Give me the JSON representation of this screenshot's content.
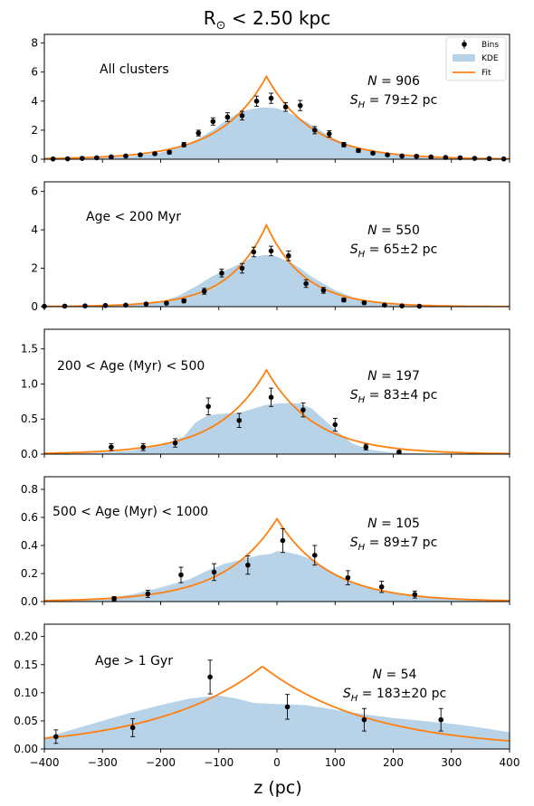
{
  "figure": {
    "title_main": "R",
    "title_sub": "⊙",
    "title_rest": " < 2.50 kpc",
    "xlabel": "z (pc)"
  },
  "colors": {
    "kde": "#b8d3e8",
    "fit": "#ff7f0e",
    "bins": "#000000"
  },
  "legend": {
    "location": "top-right",
    "bins": "Bins",
    "kde": "KDE",
    "fit": "Fit"
  },
  "chart_data": [
    {
      "type": "line",
      "label": "All clusters",
      "n_text": "906",
      "sh_text": "79±2 pc",
      "xlim": [
        -400,
        400
      ],
      "ylim": [
        0,
        8.6
      ],
      "yticks": [
        0,
        2,
        4,
        6,
        8
      ],
      "ytick_labels": [
        "0",
        "2",
        "4",
        "6",
        "8"
      ],
      "fit": {
        "peak": 5.7,
        "center": -18,
        "scale": 79
      },
      "kde": {
        "x": [
          -400,
          -350,
          -300,
          -250,
          -200,
          -170,
          -140,
          -110,
          -90,
          -70,
          -50,
          -30,
          -15,
          0,
          15,
          30,
          50,
          70,
          90,
          110,
          130,
          160,
          200,
          250,
          300,
          350,
          400
        ],
        "y": [
          0.02,
          0.05,
          0.1,
          0.2,
          0.45,
          0.8,
          1.3,
          2.0,
          2.6,
          3.1,
          3.4,
          3.55,
          3.55,
          3.5,
          3.3,
          3.0,
          2.6,
          2.1,
          1.6,
          1.2,
          0.9,
          0.55,
          0.3,
          0.12,
          0.06,
          0.03,
          0.02
        ]
      },
      "bins": {
        "x": [
          -385,
          -360,
          -335,
          -310,
          -285,
          -260,
          -235,
          -210,
          -185,
          -160,
          -135,
          -110,
          -85,
          -60,
          -35,
          -10,
          15,
          40,
          65,
          90,
          115,
          140,
          165,
          190,
          215,
          240,
          265,
          290,
          315,
          340,
          365,
          390
        ],
        "y": [
          0.02,
          0.03,
          0.06,
          0.1,
          0.16,
          0.22,
          0.3,
          0.38,
          0.48,
          1.0,
          1.8,
          2.6,
          2.9,
          3.0,
          4.0,
          4.2,
          3.6,
          3.7,
          2.0,
          1.75,
          1.0,
          0.6,
          0.42,
          0.3,
          0.22,
          0.2,
          0.15,
          0.12,
          0.1,
          0.06,
          0.04,
          0.02
        ],
        "err": [
          0.02,
          0.03,
          0.04,
          0.05,
          0.06,
          0.07,
          0.08,
          0.1,
          0.12,
          0.15,
          0.2,
          0.25,
          0.3,
          0.3,
          0.35,
          0.35,
          0.3,
          0.35,
          0.25,
          0.22,
          0.15,
          0.12,
          0.1,
          0.08,
          0.07,
          0.06,
          0.05,
          0.05,
          0.04,
          0.04,
          0.03,
          0.02
        ]
      }
    },
    {
      "type": "line",
      "label": "Age < 200 Myr",
      "n_text": "550",
      "sh_text": "65±2 pc",
      "xlim": [
        -400,
        400
      ],
      "ylim": [
        0,
        6.5
      ],
      "yticks": [
        0,
        2,
        4,
        6
      ],
      "ytick_labels": [
        "0",
        "2",
        "4",
        "6"
      ],
      "fit": {
        "peak": 4.25,
        "center": -18,
        "scale": 65
      },
      "kde": {
        "x": [
          -400,
          -300,
          -250,
          -200,
          -170,
          -140,
          -110,
          -80,
          -60,
          -40,
          -20,
          0,
          20,
          40,
          60,
          80,
          100,
          130,
          160,
          200,
          250,
          300,
          400
        ],
        "y": [
          0.01,
          0.04,
          0.1,
          0.25,
          0.55,
          1.05,
          1.6,
          2.0,
          2.3,
          2.6,
          2.7,
          2.6,
          2.35,
          2.0,
          1.55,
          1.2,
          0.85,
          0.5,
          0.25,
          0.1,
          0.04,
          0.02,
          0.01
        ]
      },
      "bins": {
        "x": [
          -400,
          -365,
          -330,
          -295,
          -260,
          -225,
          -190,
          -160,
          -125,
          -95,
          -60,
          -40,
          -10,
          20,
          50,
          80,
          115,
          150,
          185,
          215,
          245
        ],
        "y": [
          0.02,
          0.03,
          0.04,
          0.06,
          0.08,
          0.14,
          0.18,
          0.3,
          0.8,
          1.75,
          2.0,
          2.85,
          2.9,
          2.65,
          1.2,
          0.85,
          0.35,
          0.2,
          0.08,
          0.04,
          0.02
        ],
        "err": [
          0.02,
          0.02,
          0.03,
          0.03,
          0.04,
          0.05,
          0.06,
          0.1,
          0.15,
          0.2,
          0.25,
          0.25,
          0.25,
          0.25,
          0.2,
          0.15,
          0.1,
          0.07,
          0.04,
          0.03,
          0.02
        ]
      }
    },
    {
      "type": "line",
      "label": "200 < Age (Myr) < 500",
      "n_text": "197",
      "sh_text": "83±4 pc",
      "xlim": [
        -400,
        400
      ],
      "ylim": [
        0,
        1.78
      ],
      "yticks": [
        0,
        0.5,
        1.0,
        1.5
      ],
      "ytick_labels": [
        "0.0",
        "0.5",
        "1.0",
        "1.5"
      ],
      "fit": {
        "peak": 1.2,
        "center": -18,
        "scale": 83
      },
      "kde": {
        "x": [
          -400,
          -300,
          -250,
          -200,
          -160,
          -140,
          -120,
          -100,
          -80,
          -60,
          -40,
          -20,
          0,
          20,
          40,
          60,
          80,
          100,
          130,
          160,
          200,
          300,
          400
        ],
        "y": [
          0.0,
          0.02,
          0.05,
          0.12,
          0.25,
          0.45,
          0.55,
          0.57,
          0.58,
          0.6,
          0.65,
          0.7,
          0.72,
          0.73,
          0.72,
          0.65,
          0.5,
          0.35,
          0.15,
          0.06,
          0.02,
          0.0,
          0.0
        ]
      },
      "bins": {
        "x": [
          -285,
          -230,
          -175,
          -118,
          -65,
          -10,
          45,
          100,
          153,
          210
        ],
        "y": [
          0.1,
          0.1,
          0.16,
          0.68,
          0.48,
          0.81,
          0.63,
          0.42,
          0.1,
          0.03
        ],
        "err": [
          0.05,
          0.05,
          0.06,
          0.12,
          0.1,
          0.13,
          0.1,
          0.09,
          0.04,
          0.02
        ]
      }
    },
    {
      "type": "line",
      "label": "500 < Age (Myr) < 1000",
      "n_text": "105",
      "sh_text": "89±7 pc",
      "xlim": [
        -400,
        400
      ],
      "ylim": [
        0,
        0.89
      ],
      "yticks": [
        0,
        0.2,
        0.4,
        0.6,
        0.8
      ],
      "ytick_labels": [
        "0.0",
        "0.2",
        "0.4",
        "0.6",
        "0.8"
      ],
      "fit": {
        "peak": 0.59,
        "center": 0,
        "scale": 89
      },
      "kde": {
        "x": [
          -400,
          -300,
          -250,
          -200,
          -150,
          -120,
          -90,
          -60,
          -30,
          -10,
          0,
          20,
          40,
          60,
          80,
          100,
          130,
          160,
          200,
          250,
          300,
          400
        ],
        "y": [
          0.0,
          0.02,
          0.05,
          0.1,
          0.16,
          0.22,
          0.27,
          0.3,
          0.33,
          0.34,
          0.36,
          0.35,
          0.33,
          0.3,
          0.25,
          0.2,
          0.14,
          0.1,
          0.06,
          0.04,
          0.02,
          0.0
        ]
      },
      "bins": {
        "x": [
          -280,
          -222,
          -165,
          -108,
          -50,
          10,
          65,
          122,
          180,
          237
        ],
        "y": [
          0.02,
          0.055,
          0.19,
          0.21,
          0.26,
          0.435,
          0.33,
          0.17,
          0.105,
          0.05
        ],
        "err": [
          0.015,
          0.025,
          0.055,
          0.06,
          0.065,
          0.085,
          0.07,
          0.05,
          0.04,
          0.025
        ]
      }
    },
    {
      "type": "line",
      "label": "Age > 1 Gyr",
      "n_text": "54",
      "sh_text": "183±20 pc",
      "xlim": [
        -400,
        400
      ],
      "ylim": [
        0,
        0.222
      ],
      "yticks": [
        0,
        0.05,
        0.1,
        0.15,
        0.2
      ],
      "ytick_labels": [
        "0.00",
        "0.05",
        "0.10",
        "0.15",
        "0.20"
      ],
      "fit": {
        "peak": 0.147,
        "center": -25,
        "scale": 183
      },
      "kde": {
        "x": [
          -400,
          -350,
          -300,
          -250,
          -200,
          -150,
          -100,
          -70,
          -40,
          0,
          50,
          100,
          150,
          200,
          250,
          300,
          350,
          400
        ],
        "y": [
          0.02,
          0.035,
          0.05,
          0.065,
          0.078,
          0.09,
          0.095,
          0.09,
          0.082,
          0.08,
          0.078,
          0.07,
          0.062,
          0.055,
          0.05,
          0.045,
          0.038,
          0.03
        ]
      },
      "bins": {
        "x": [
          -380,
          -248,
          -115,
          18,
          150,
          282
        ],
        "y": [
          0.022,
          0.038,
          0.128,
          0.075,
          0.052,
          0.052
        ],
        "err": [
          0.012,
          0.016,
          0.03,
          0.022,
          0.02,
          0.02
        ]
      }
    }
  ]
}
